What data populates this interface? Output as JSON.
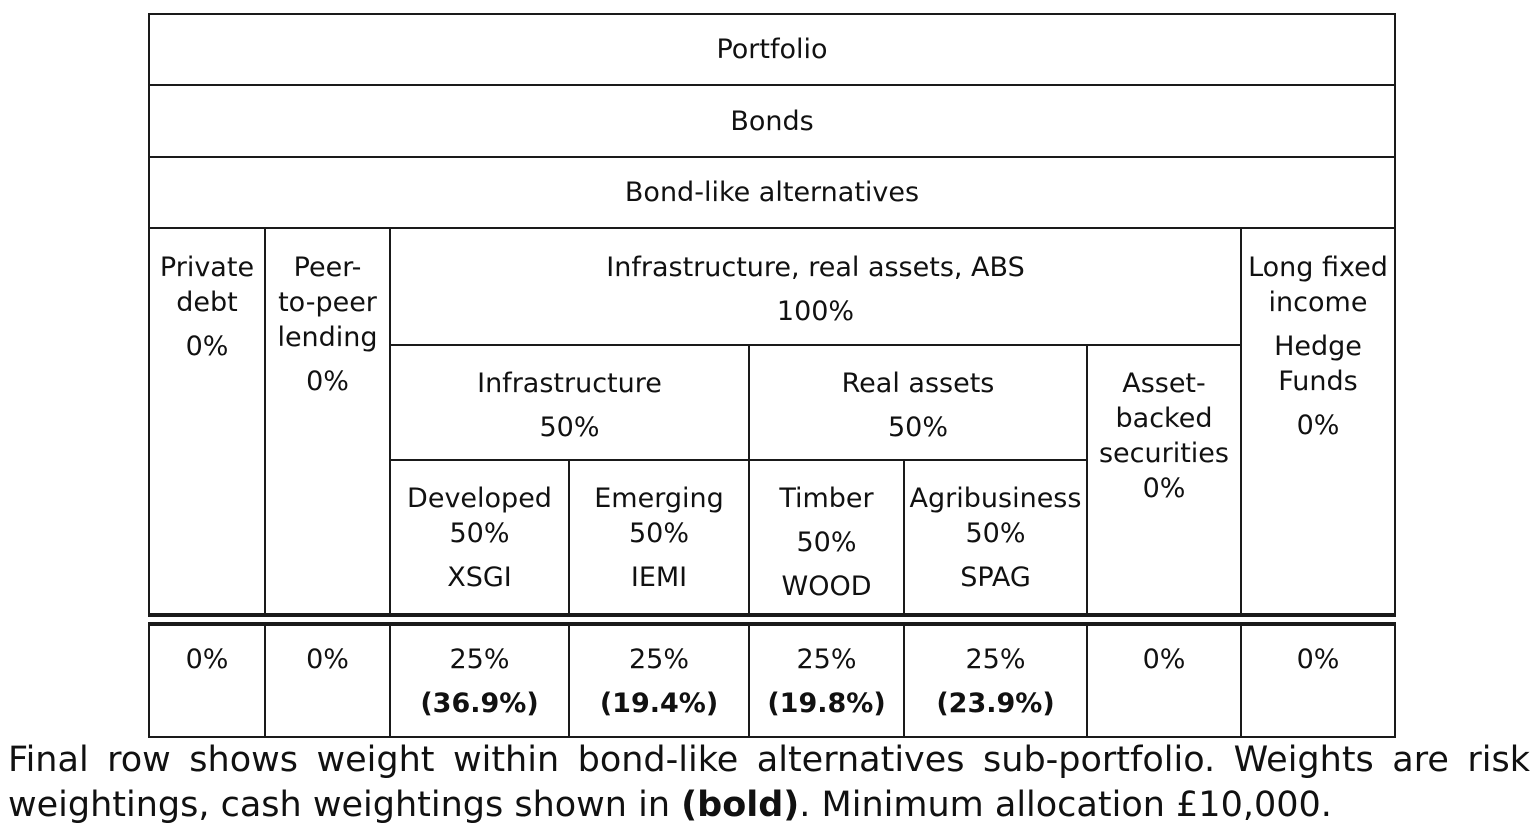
{
  "header_rows": {
    "portfolio": "Portfolio",
    "bonds": "Bonds",
    "bond_like_alternatives": "Bond-like alternatives"
  },
  "columns": {
    "private_debt": {
      "label_line1": "Private",
      "label_line2": "debt",
      "weight": "0%"
    },
    "peer_to_peer": {
      "label_line1": "Peer-",
      "label_line2": "to-peer",
      "label_line3": "lending",
      "weight": "0%"
    },
    "infra_real_abs": {
      "label": "Infrastructure, real assets, ABS",
      "weight": "100%"
    },
    "infrastructure": {
      "label": "Infrastructure",
      "weight": "50%"
    },
    "real_assets": {
      "label": "Real assets",
      "weight": "50%"
    },
    "abs": {
      "label_line1": "Asset-",
      "label_line2": "backed",
      "label_line3": "securities",
      "weight": "0%"
    },
    "long_fixed": {
      "label_line1": "Long fixed",
      "label_line2": "income",
      "label_line3": "Hedge",
      "label_line4": "Funds",
      "weight": "0%"
    },
    "developed": {
      "label": "Developed",
      "weight": "50%",
      "ticker": "XSGI"
    },
    "emerging": {
      "label": "Emerging",
      "weight": "50%",
      "ticker": "IEMI"
    },
    "timber": {
      "label": "Timber",
      "weight": "50%",
      "ticker": "WOOD"
    },
    "agribusiness": {
      "label": "Agribusiness",
      "weight": "50%",
      "ticker": "SPAG"
    }
  },
  "final_row": {
    "private_debt": "0%",
    "peer_to_peer": "0%",
    "developed": {
      "risk": "25%",
      "cash": "(36.9%)"
    },
    "emerging": {
      "risk": "25%",
      "cash": "(19.4%)"
    },
    "timber": {
      "risk": "25%",
      "cash": "(19.8%)"
    },
    "agribusiness": {
      "risk": "25%",
      "cash": "(23.9%)"
    },
    "abs": "0%",
    "long_fixed": "0%"
  },
  "caption": {
    "part1": "Final row shows weight within bond-like alternatives sub-portfolio. Weights are risk weightings, cash weightings shown in ",
    "bold": "(bold)",
    "part2": ". Minimum allocation £10,000."
  }
}
